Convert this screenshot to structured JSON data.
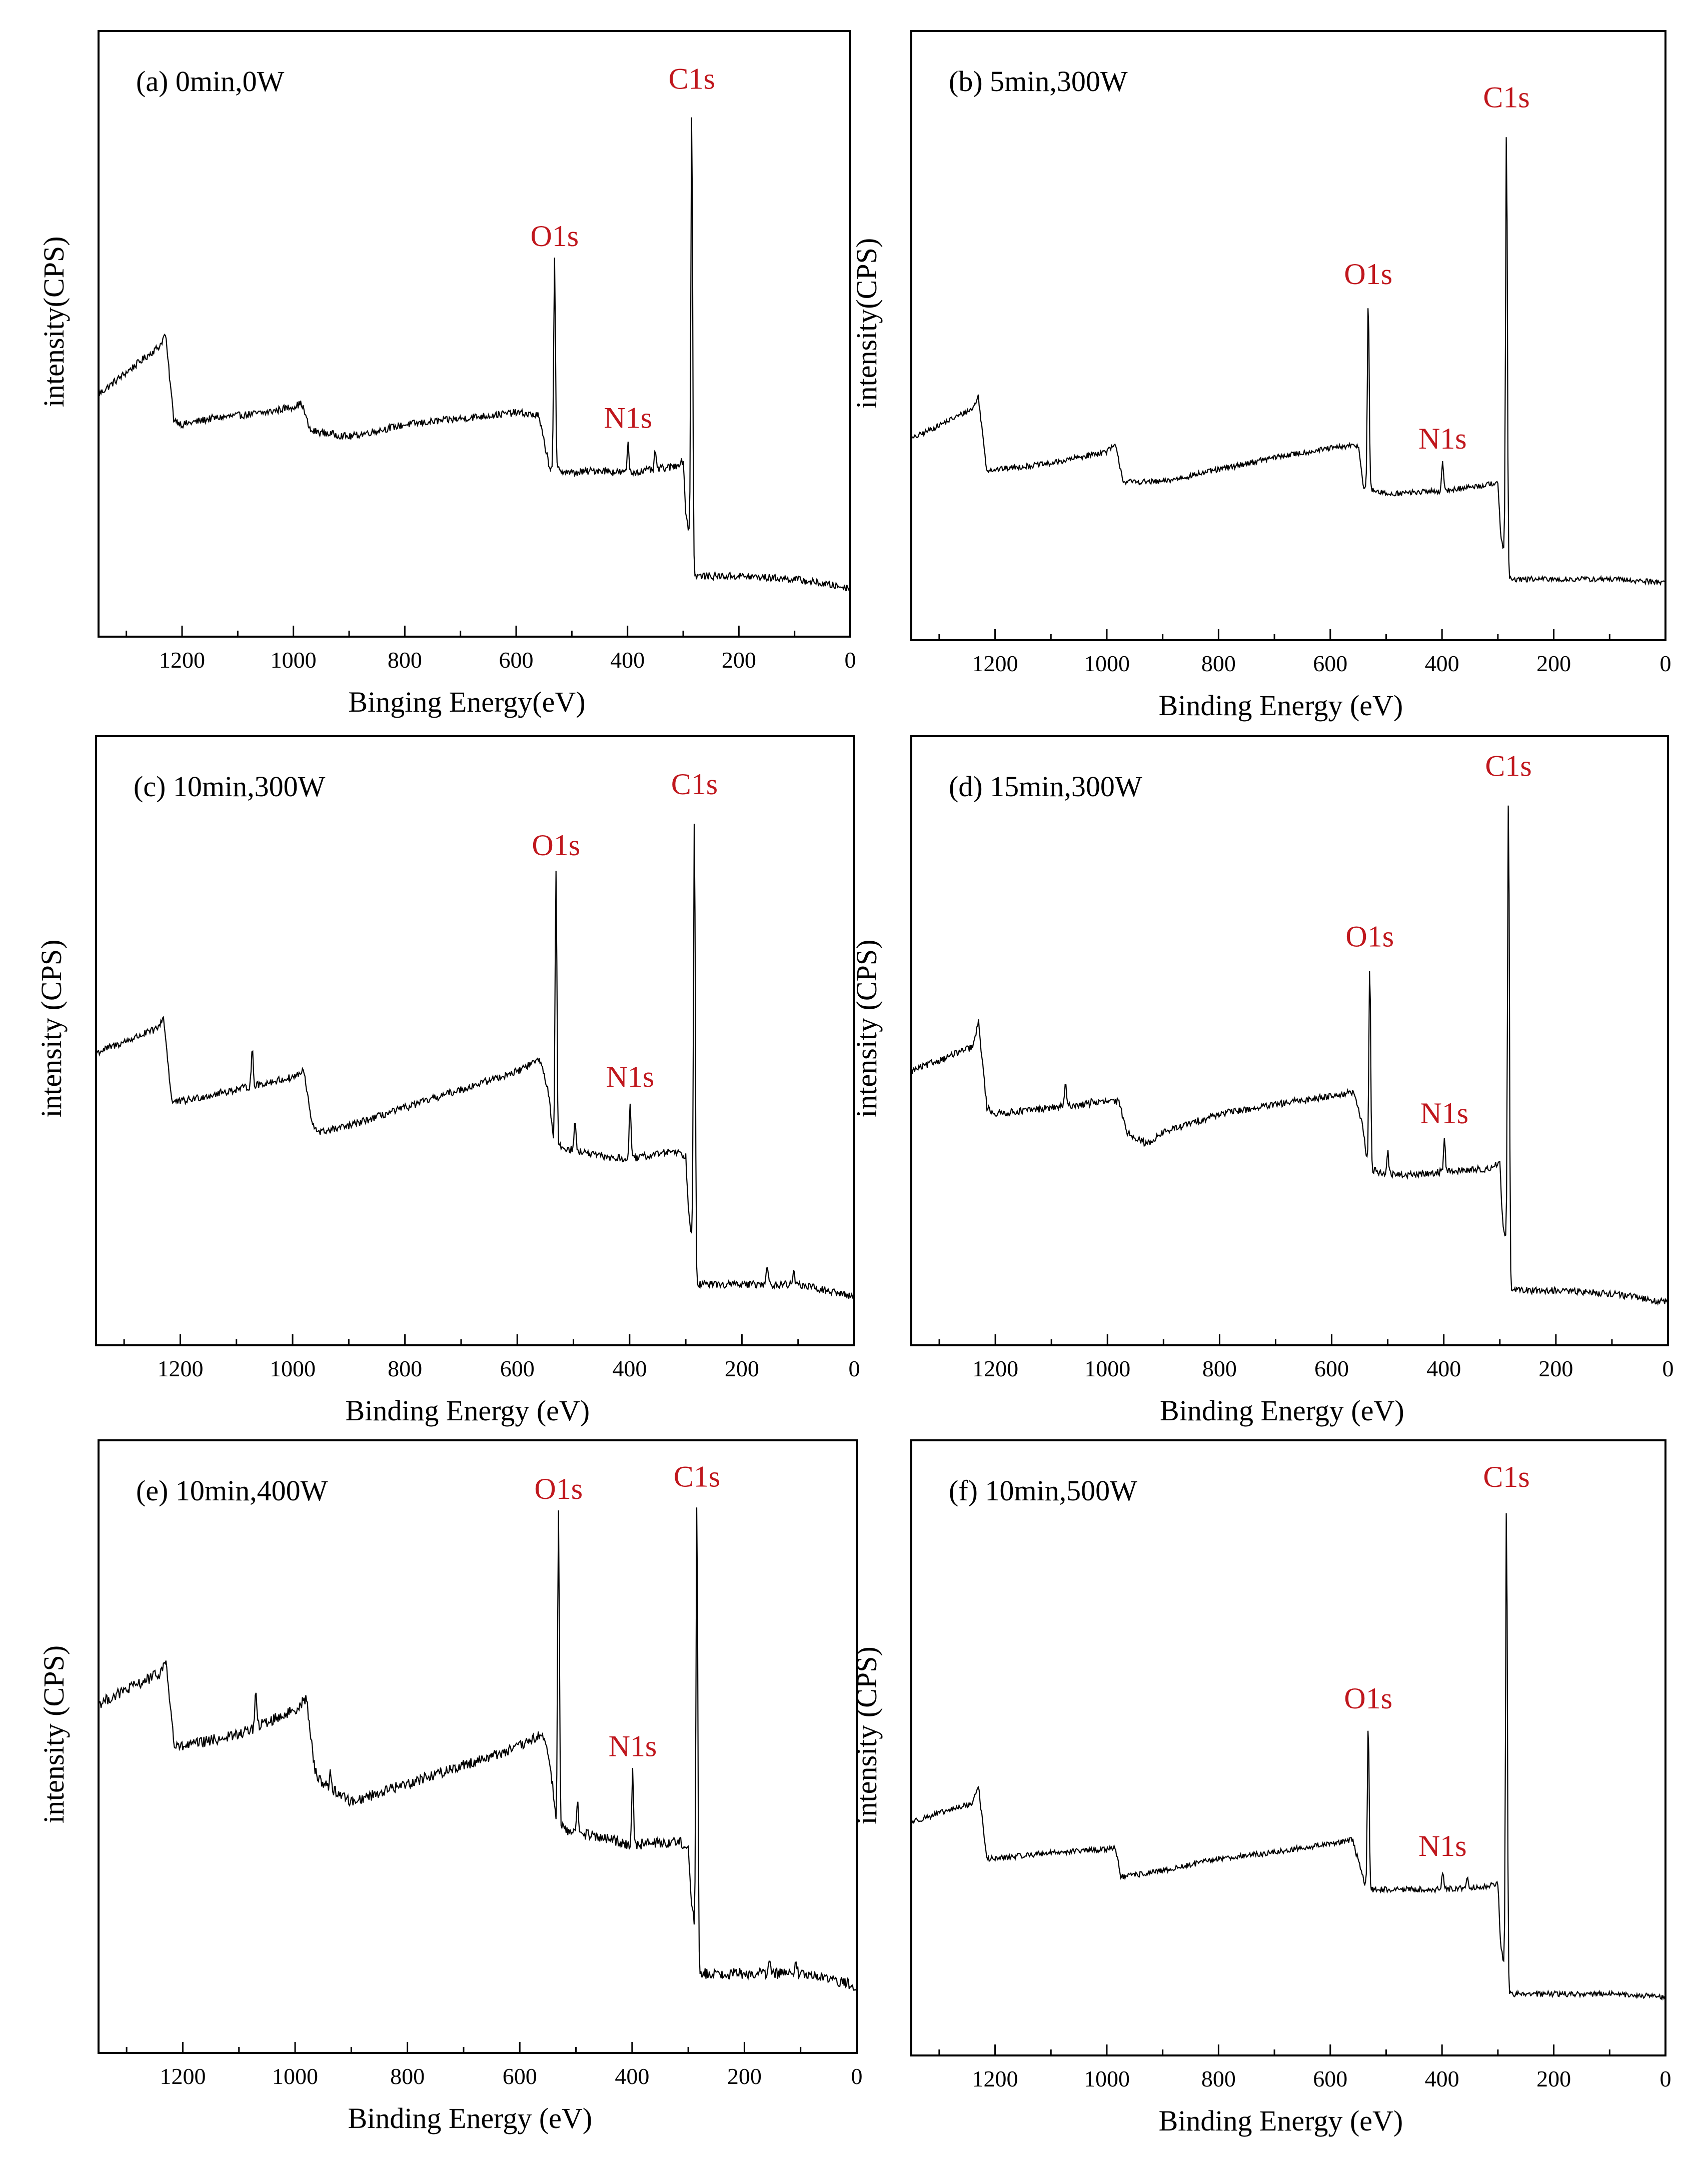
{
  "figure": {
    "peak_label_color": "#c0171d",
    "line_color": "#000000"
  },
  "chart_data": [
    {
      "type": "line",
      "panel_label": "(a) 0min,0W",
      "xlabel": "Binging Energy(eV)",
      "ylabel": "intensity(CPS)",
      "xlim": [
        1350,
        0
      ],
      "ylim": [
        0,
        100
      ],
      "x_ticks": [
        1200,
        1000,
        800,
        600,
        400,
        200,
        0
      ],
      "baseline": [
        [
          1350,
          40
        ],
        [
          1240,
          48
        ],
        [
          1230,
          50
        ],
        [
          1215,
          36
        ],
        [
          1200,
          35
        ],
        [
          1150,
          36
        ],
        [
          1050,
          37
        ],
        [
          1000,
          38
        ],
        [
          985,
          38.5
        ],
        [
          970,
          34
        ],
        [
          900,
          33
        ],
        [
          800,
          35
        ],
        [
          700,
          36
        ],
        [
          600,
          37
        ],
        [
          560,
          36.5
        ],
        [
          540,
          28
        ],
        [
          500,
          27
        ],
        [
          450,
          27.5
        ],
        [
          400,
          27
        ],
        [
          320,
          28
        ],
        [
          300,
          29
        ],
        [
          295,
          20
        ],
        [
          285,
          15
        ],
        [
          280,
          10
        ],
        [
          200,
          10
        ],
        [
          100,
          9.5
        ],
        [
          0,
          8
        ]
      ],
      "noise": 0.6,
      "peaks": [
        {
          "name": "O1s",
          "x": 531,
          "height": 62
        },
        {
          "name": "N1s",
          "x": 399,
          "height": 32
        },
        {
          "name": "C1s",
          "x": 284.6,
          "height": 88
        }
      ],
      "extra_spikes": [
        {
          "x": 350,
          "height": 30.5
        }
      ]
    },
    {
      "type": "line",
      "panel_label": "(b) 5min,300W",
      "xlabel": "Binding Energy (eV)",
      "ylabel": "intensity(CPS)",
      "xlim": [
        1350,
        0
      ],
      "ylim": [
        0,
        100
      ],
      "x_ticks": [
        1200,
        1000,
        800,
        600,
        400,
        200,
        0
      ],
      "baseline": [
        [
          1350,
          33
        ],
        [
          1240,
          38
        ],
        [
          1230,
          40
        ],
        [
          1215,
          28
        ],
        [
          1200,
          28
        ],
        [
          1100,
          29
        ],
        [
          1000,
          31
        ],
        [
          985,
          32
        ],
        [
          970,
          26
        ],
        [
          900,
          26
        ],
        [
          800,
          28
        ],
        [
          700,
          30
        ],
        [
          600,
          31.5
        ],
        [
          550,
          32
        ],
        [
          540,
          25
        ],
        [
          500,
          24
        ],
        [
          400,
          24.5
        ],
        [
          320,
          25.5
        ],
        [
          300,
          26
        ],
        [
          295,
          17
        ],
        [
          285,
          12
        ],
        [
          280,
          10
        ],
        [
          200,
          10
        ],
        [
          100,
          10
        ],
        [
          0,
          9.5
        ]
      ],
      "noise": 0.45,
      "peaks": [
        {
          "name": "O1s",
          "x": 532,
          "height": 56
        },
        {
          "name": "N1s",
          "x": 399,
          "height": 29
        },
        {
          "name": "C1s",
          "x": 284.6,
          "height": 85
        }
      ],
      "extra_spikes": []
    },
    {
      "type": "line",
      "panel_label": "(c) 10min,300W",
      "xlabel": "Binding Energy (eV)",
      "ylabel": "intensity (CPS)",
      "xlim": [
        1350,
        0
      ],
      "ylim": [
        0,
        100
      ],
      "x_ticks": [
        1200,
        1000,
        800,
        600,
        400,
        200,
        0
      ],
      "baseline": [
        [
          1350,
          48
        ],
        [
          1240,
          52
        ],
        [
          1230,
          54
        ],
        [
          1215,
          40
        ],
        [
          1200,
          40
        ],
        [
          1100,
          42
        ],
        [
          1000,
          44
        ],
        [
          980,
          45
        ],
        [
          965,
          36
        ],
        [
          950,
          35
        ],
        [
          900,
          36
        ],
        [
          800,
          39
        ],
        [
          700,
          42
        ],
        [
          600,
          45
        ],
        [
          560,
          47
        ],
        [
          545,
          42
        ],
        [
          535,
          33
        ],
        [
          500,
          32
        ],
        [
          450,
          31
        ],
        [
          400,
          30.5
        ],
        [
          320,
          32
        ],
        [
          300,
          31
        ],
        [
          295,
          22
        ],
        [
          285,
          15
        ],
        [
          280,
          10
        ],
        [
          200,
          10
        ],
        [
          100,
          10
        ],
        [
          0,
          8
        ]
      ],
      "noise": 0.6,
      "peaks": [
        {
          "name": "O1s",
          "x": 531,
          "height": 78
        },
        {
          "name": "N1s",
          "x": 399,
          "height": 40
        },
        {
          "name": "C1s",
          "x": 284.6,
          "height": 88
        }
      ],
      "extra_spikes": [
        {
          "x": 1072,
          "height": 49
        },
        {
          "x": 497,
          "height": 37
        },
        {
          "x": 155,
          "height": 13
        },
        {
          "x": 108,
          "height": 12.5
        }
      ]
    },
    {
      "type": "line",
      "panel_label": "(d) 15min,300W",
      "xlabel": "Binding Energy (eV)",
      "ylabel": "intensity (CPS)",
      "xlim": [
        1350,
        0
      ],
      "ylim": [
        0,
        100
      ],
      "x_ticks": [
        1200,
        1000,
        800,
        600,
        400,
        200,
        0
      ],
      "baseline": [
        [
          1350,
          45
        ],
        [
          1240,
          49
        ],
        [
          1230,
          53
        ],
        [
          1215,
          39
        ],
        [
          1200,
          38
        ],
        [
          1100,
          39
        ],
        [
          1000,
          40
        ],
        [
          980,
          40
        ],
        [
          965,
          35
        ],
        [
          930,
          33
        ],
        [
          900,
          35
        ],
        [
          800,
          38
        ],
        [
          700,
          39.5
        ],
        [
          600,
          41
        ],
        [
          560,
          41.5
        ],
        [
          545,
          36
        ],
        [
          535,
          29
        ],
        [
          500,
          28
        ],
        [
          450,
          28
        ],
        [
          400,
          28.5
        ],
        [
          320,
          29
        ],
        [
          300,
          30
        ],
        [
          295,
          20
        ],
        [
          285,
          15
        ],
        [
          280,
          9
        ],
        [
          200,
          9
        ],
        [
          100,
          8.5
        ],
        [
          0,
          7
        ]
      ],
      "noise": 0.55,
      "peaks": [
        {
          "name": "O1s",
          "x": 532,
          "height": 63
        },
        {
          "name": "N1s",
          "x": 399,
          "height": 34
        },
        {
          "name": "C1s",
          "x": 284.6,
          "height": 91
        }
      ],
      "extra_spikes": [
        {
          "x": 1075,
          "height": 43
        },
        {
          "x": 500,
          "height": 32
        },
        {
          "x": 1027,
          "height": 40.5
        }
      ]
    },
    {
      "type": "line",
      "panel_label": "(e) 10min,400W",
      "xlabel": "Binding Energy (eV)",
      "ylabel": "intensity (CPS)",
      "xlim": [
        1350,
        0
      ],
      "ylim": [
        0,
        100
      ],
      "x_ticks": [
        1200,
        1000,
        800,
        600,
        400,
        200,
        0
      ],
      "baseline": [
        [
          1350,
          57
        ],
        [
          1240,
          62
        ],
        [
          1230,
          64
        ],
        [
          1215,
          50
        ],
        [
          1200,
          50
        ],
        [
          1100,
          52
        ],
        [
          1000,
          56
        ],
        [
          980,
          58
        ],
        [
          965,
          46
        ],
        [
          950,
          44
        ],
        [
          900,
          41
        ],
        [
          800,
          44
        ],
        [
          700,
          47
        ],
        [
          600,
          50
        ],
        [
          560,
          52
        ],
        [
          545,
          47
        ],
        [
          535,
          37
        ],
        [
          500,
          36
        ],
        [
          450,
          35
        ],
        [
          400,
          34
        ],
        [
          320,
          34.5
        ],
        [
          300,
          34
        ],
        [
          295,
          25
        ],
        [
          285,
          18
        ],
        [
          280,
          13
        ],
        [
          200,
          13
        ],
        [
          100,
          13
        ],
        [
          0,
          11
        ]
      ],
      "noise": 0.9,
      "peaks": [
        {
          "name": "O1s",
          "x": 531,
          "height": 88
        },
        {
          "name": "N1s",
          "x": 399,
          "height": 46
        },
        {
          "name": "C1s",
          "x": 284.6,
          "height": 90
        }
      ],
      "extra_spikes": [
        {
          "x": 1070,
          "height": 59
        },
        {
          "x": 937,
          "height": 46
        },
        {
          "x": 497,
          "height": 41
        },
        {
          "x": 155,
          "height": 15
        },
        {
          "x": 108,
          "height": 14.5
        }
      ]
    },
    {
      "type": "line",
      "panel_label": "(f) 10min,500W",
      "xlabel": "Binding Energy (eV)",
      "ylabel": "intensity (CPS)",
      "xlim": [
        1350,
        0
      ],
      "ylim": [
        0,
        100
      ],
      "x_ticks": [
        1200,
        1000,
        800,
        600,
        400,
        200,
        0
      ],
      "baseline": [
        [
          1350,
          38
        ],
        [
          1240,
          41
        ],
        [
          1230,
          44
        ],
        [
          1215,
          32
        ],
        [
          1200,
          32
        ],
        [
          1100,
          33
        ],
        [
          1000,
          33.5
        ],
        [
          985,
          34
        ],
        [
          975,
          29
        ],
        [
          900,
          30
        ],
        [
          800,
          32
        ],
        [
          700,
          33
        ],
        [
          600,
          34.5
        ],
        [
          560,
          35
        ],
        [
          545,
          30
        ],
        [
          535,
          27
        ],
        [
          500,
          27
        ],
        [
          400,
          27
        ],
        [
          320,
          27.5
        ],
        [
          300,
          28
        ],
        [
          295,
          18
        ],
        [
          285,
          12
        ],
        [
          280,
          10
        ],
        [
          200,
          10
        ],
        [
          100,
          10
        ],
        [
          0,
          9.5
        ]
      ],
      "noise": 0.45,
      "peaks": [
        {
          "name": "O1s",
          "x": 532,
          "height": 54
        },
        {
          "name": "N1s",
          "x": 399,
          "height": 30
        },
        {
          "name": "C1s",
          "x": 284.6,
          "height": 90
        }
      ],
      "extra_spikes": [
        {
          "x": 355,
          "height": 29
        }
      ]
    }
  ]
}
